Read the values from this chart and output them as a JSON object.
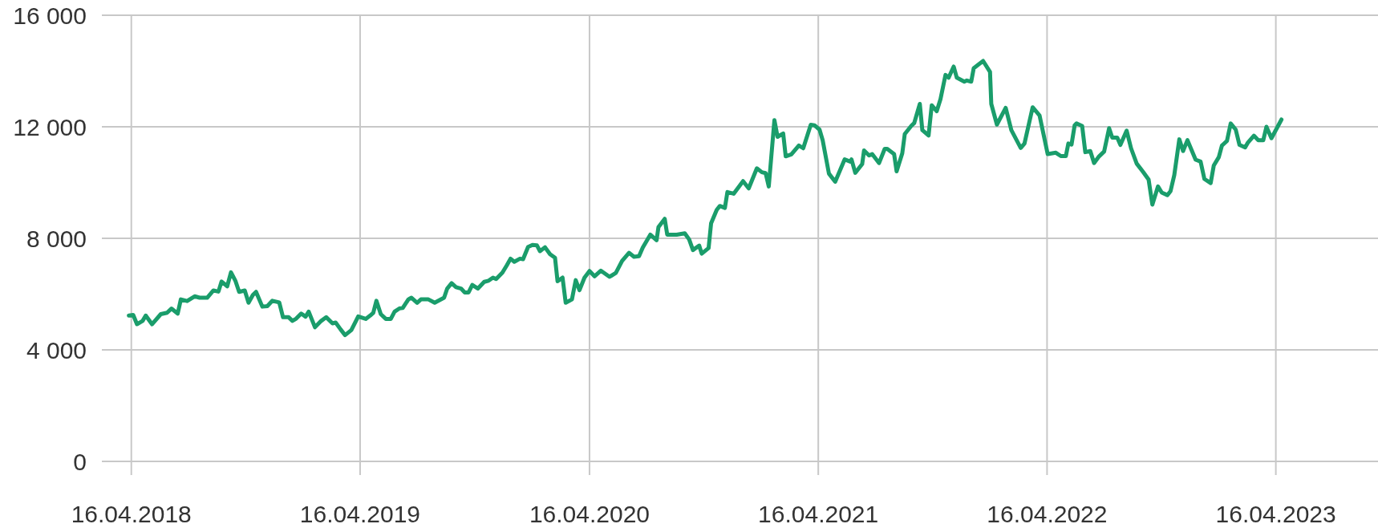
{
  "chart_data": {
    "type": "line",
    "xlim": [
      "2018-02-28",
      "2023-09-26"
    ],
    "ylim": [
      0,
      16000
    ],
    "xticks": [
      {
        "value": "2018-04-16",
        "label": "16.04.2018"
      },
      {
        "value": "2019-04-16",
        "label": "16.04.2019"
      },
      {
        "value": "2020-04-16",
        "label": "16.04.2020"
      },
      {
        "value": "2021-04-16",
        "label": "16.04.2021"
      },
      {
        "value": "2022-04-16",
        "label": "16.04.2022"
      },
      {
        "value": "2023-04-16",
        "label": "16.04.2023"
      }
    ],
    "yticks": [
      0,
      {
        "value": 4000,
        "label": "4 000"
      },
      {
        "value": 8000,
        "label": "8 000"
      },
      {
        "value": 12000,
        "label": "12 000"
      },
      {
        "value": 16000,
        "label": "16 000"
      }
    ],
    "grid": true,
    "marker": "none",
    "line_style": "solid",
    "x": [
      "2018-04-12",
      "2018-04-19",
      "2018-04-25",
      "2018-05-04",
      "2018-05-09",
      "2018-05-19",
      "2018-06-02",
      "2018-06-12",
      "2018-06-19",
      "2018-06-29",
      "2018-07-04",
      "2018-07-14",
      "2018-07-26",
      "2018-08-03",
      "2018-08-15",
      "2018-08-25",
      "2018-09-02",
      "2018-09-07",
      "2018-09-16",
      "2018-09-22",
      "2018-09-29",
      "2018-10-05",
      "2018-10-14",
      "2018-10-20",
      "2018-10-27",
      "2018-11-01",
      "2018-11-11",
      "2018-11-19",
      "2018-11-27",
      "2018-12-08",
      "2018-12-14",
      "2018-12-23",
      "2018-12-29",
      "2019-01-04",
      "2019-01-12",
      "2019-01-19",
      "2019-01-24",
      "2019-02-03",
      "2019-02-13",
      "2019-02-21",
      "2019-03-03",
      "2019-03-08",
      "2019-03-16",
      "2019-03-23",
      "2019-04-02",
      "2019-04-13",
      "2019-04-25",
      "2019-05-02",
      "2019-05-07",
      "2019-05-12",
      "2019-05-19",
      "2019-05-27",
      "2019-06-04",
      "2019-06-10",
      "2019-06-18",
      "2019-06-23",
      "2019-07-02",
      "2019-07-07",
      "2019-07-16",
      "2019-07-22",
      "2019-08-03",
      "2019-08-13",
      "2019-08-28",
      "2019-09-02",
      "2019-09-09",
      "2019-09-16",
      "2019-09-24",
      "2019-09-30",
      "2019-10-06",
      "2019-10-12",
      "2019-10-21",
      "2019-10-31",
      "2019-11-07",
      "2019-11-14",
      "2019-11-19",
      "2019-11-29",
      "2019-12-06",
      "2019-12-12",
      "2019-12-18",
      "2019-12-27",
      "2020-01-01",
      "2020-01-09",
      "2020-01-16",
      "2020-01-23",
      "2020-01-28",
      "2020-02-05",
      "2020-02-13",
      "2020-02-21",
      "2020-02-25",
      "2020-03-04",
      "2020-03-09",
      "2020-03-19",
      "2020-03-25",
      "2020-03-31",
      "2020-04-08",
      "2020-04-16",
      "2020-04-24",
      "2020-05-04",
      "2020-05-18",
      "2020-05-28",
      "2020-06-07",
      "2020-06-18",
      "2020-06-26",
      "2020-07-04",
      "2020-07-10",
      "2020-07-22",
      "2020-08-01",
      "2020-08-04",
      "2020-08-14",
      "2020-08-18",
      "2020-09-02",
      "2020-09-15",
      "2020-09-22",
      "2020-09-28",
      "2020-10-08",
      "2020-10-12",
      "2020-10-23",
      "2020-10-27",
      "2020-11-05",
      "2020-11-10",
      "2020-11-18",
      "2020-11-22",
      "2020-12-02",
      "2020-12-17",
      "2020-12-26",
      "2021-01-08",
      "2021-01-16",
      "2021-01-22",
      "2021-01-27",
      "2021-02-05",
      "2021-02-10",
      "2021-02-19",
      "2021-02-23",
      "2021-03-04",
      "2021-03-16",
      "2021-03-23",
      "2021-04-04",
      "2021-04-10",
      "2021-04-18",
      "2021-04-23",
      "2021-05-03",
      "2021-05-13",
      "2021-05-28",
      "2021-06-06",
      "2021-06-08",
      "2021-06-14",
      "2021-06-25",
      "2021-06-28",
      "2021-07-06",
      "2021-07-11",
      "2021-07-22",
      "2021-07-31",
      "2021-08-04",
      "2021-08-15",
      "2021-08-19",
      "2021-08-28",
      "2021-09-01",
      "2021-09-12",
      "2021-09-16",
      "2021-09-25",
      "2021-09-29",
      "2021-10-09",
      "2021-10-14",
      "2021-10-22",
      "2021-10-28",
      "2021-11-05",
      "2021-11-10",
      "2021-11-18",
      "2021-11-23",
      "2021-12-05",
      "2021-12-09",
      "2021-12-16",
      "2021-12-20",
      "2021-12-27",
      "2022-01-04",
      "2022-01-15",
      "2022-01-17",
      "2022-01-26",
      "2022-02-09",
      "2022-02-18",
      "2022-03-05",
      "2022-03-11",
      "2022-03-24",
      "2022-04-04",
      "2022-04-17",
      "2022-04-30",
      "2022-05-08",
      "2022-05-16",
      "2022-05-20",
      "2022-05-25",
      "2022-05-30",
      "2022-06-02",
      "2022-06-11",
      "2022-06-16",
      "2022-06-24",
      "2022-06-30",
      "2022-07-08",
      "2022-07-16",
      "2022-07-24",
      "2022-07-29",
      "2022-08-06",
      "2022-08-11",
      "2022-08-21",
      "2022-08-28",
      "2022-09-06",
      "2022-09-16",
      "2022-09-25",
      "2022-10-01",
      "2022-10-10",
      "2022-10-16",
      "2022-10-25",
      "2022-10-30",
      "2022-11-05",
      "2022-11-13",
      "2022-11-19",
      "2022-11-26",
      "2022-12-09",
      "2022-12-17",
      "2022-12-23",
      "2023-01-02",
      "2023-01-07",
      "2023-01-15",
      "2023-01-20",
      "2023-01-28",
      "2023-02-03",
      "2023-02-11",
      "2023-02-17",
      "2023-02-26",
      "2023-03-02",
      "2023-03-12",
      "2023-03-19",
      "2023-03-27",
      "2023-04-01",
      "2023-04-09",
      "2023-04-25"
    ],
    "series": [
      {
        "color": "#1a9d6b",
        "values": [
          5230,
          5250,
          4920,
          5040,
          5230,
          4920,
          5280,
          5330,
          5480,
          5300,
          5810,
          5750,
          5920,
          5870,
          5870,
          6130,
          6090,
          6450,
          6280,
          6780,
          6480,
          6080,
          6130,
          5690,
          5970,
          6080,
          5550,
          5570,
          5760,
          5700,
          5170,
          5170,
          5040,
          5120,
          5300,
          5190,
          5370,
          4810,
          5040,
          5170,
          4950,
          4980,
          4730,
          4530,
          4710,
          5200,
          5110,
          5230,
          5330,
          5760,
          5280,
          5110,
          5110,
          5370,
          5490,
          5500,
          5810,
          5870,
          5690,
          5810,
          5810,
          5690,
          5870,
          6200,
          6390,
          6250,
          6200,
          6060,
          6060,
          6330,
          6200,
          6440,
          6480,
          6590,
          6540,
          6770,
          7030,
          7270,
          7160,
          7270,
          7250,
          7690,
          7760,
          7750,
          7540,
          7680,
          7430,
          7300,
          6460,
          6590,
          5690,
          5810,
          6500,
          6140,
          6590,
          6830,
          6640,
          6840,
          6620,
          6760,
          7190,
          7480,
          7340,
          7360,
          7670,
          8130,
          7930,
          8400,
          8700,
          8130,
          8130,
          8180,
          7960,
          7580,
          7740,
          7450,
          7650,
          8540,
          9020,
          9160,
          9090,
          9660,
          9600,
          10050,
          9790,
          10510,
          10370,
          10340,
          9860,
          12240,
          11640,
          11760,
          10940,
          11010,
          11330,
          11230,
          12070,
          12050,
          11900,
          11520,
          10320,
          10030,
          10830,
          10750,
          10830,
          10350,
          10660,
          11150,
          10970,
          11020,
          10700,
          11210,
          11210,
          11020,
          10400,
          11050,
          11740,
          12050,
          12130,
          12820,
          11880,
          11690,
          12770,
          12560,
          12990,
          13860,
          13760,
          14160,
          13760,
          13620,
          13660,
          13620,
          14100,
          14220,
          14360,
          13970,
          12820,
          12080,
          12680,
          11880,
          11240,
          11400,
          12700,
          12410,
          11020,
          11070,
          10950,
          10950,
          11400,
          11360,
          12050,
          12120,
          12030,
          11090,
          11130,
          10700,
          10940,
          11110,
          11950,
          11610,
          11610,
          11350,
          11860,
          11230,
          10680,
          10390,
          10110,
          9210,
          9860,
          9640,
          9550,
          9690,
          10270,
          11550,
          11130,
          11520,
          10820,
          10750,
          10130,
          9980,
          10610,
          10910,
          11330,
          11490,
          12120,
          11900,
          11350,
          11260,
          11420,
          11680,
          11520,
          11520,
          12000,
          11590,
          12260
        ]
      }
    ]
  }
}
